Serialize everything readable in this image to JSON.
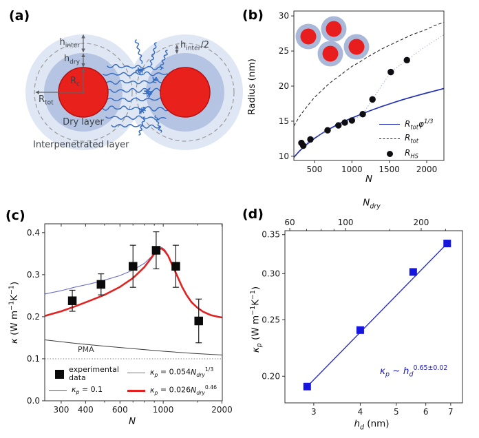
{
  "figure": {
    "background": "#ffffff",
    "panels": {
      "a": {
        "label": "(a)",
        "type": "schematic",
        "annotations": {
          "h_inter": "h_{inter}",
          "h_dry": "h_{dry}",
          "r_core": "R_{c}",
          "r_tot": "R_{tot}",
          "dry_layer": "Dry layer",
          "interpenetrated_layer": "Interpenetrated layer",
          "h_inter_half": "h_{inter}/2"
        },
        "colors": {
          "core": "#e8211d",
          "core_edge": "#b51210",
          "dry_layer": "#b6c4e3",
          "interpenetrated_layer": "#dfe6f4",
          "polymer_chain": "#3a6fc0",
          "dashed_outline": "#9a9a9a",
          "arrow": "#5f6368"
        }
      },
      "b": {
        "label": "(b)",
        "inset": {
          "description": "cluster of four core-shell nanoparticles",
          "shell_color": "#a9b8d8",
          "core_color": "#e81d1d"
        }
      },
      "c": {
        "label": "(c)"
      },
      "d": {
        "label": "(d)"
      }
    }
  },
  "chart_data": [
    {
      "id": "radius_vs_N",
      "panel": "b",
      "type": "line",
      "xlabel": "*N*",
      "ylabel": "Radius (nm)",
      "xscale": "linear",
      "yscale": "linear",
      "xlim": [
        224,
        2230
      ],
      "ylim": [
        9.4,
        30.7
      ],
      "xticks": [
        500,
        1000,
        1500,
        2000
      ],
      "xtick_labels": [
        "500",
        "1000",
        "1500",
        "2000"
      ],
      "yticks": [
        10,
        15,
        20,
        25,
        30
      ],
      "ytick_labels": [
        "10",
        "15",
        "20",
        "25",
        "30"
      ],
      "series": [
        {
          "key": "rtot_phi",
          "name": "R_tot phi^1/3",
          "type": "line",
          "color": "#1f2eb4",
          "width": 1.7,
          "x": [
            224,
            300,
            400,
            500,
            600,
            700,
            800,
            900,
            1000,
            1100,
            1200,
            1300,
            1400,
            1500,
            1600,
            1700,
            1800,
            1900,
            2000,
            2100,
            2230
          ],
          "y": [
            9.85,
            10.76,
            11.73,
            12.55,
            13.27,
            13.9,
            14.47,
            15.0,
            15.45,
            15.89,
            16.32,
            16.71,
            17.1,
            17.45,
            17.8,
            18.13,
            18.44,
            18.73,
            19.02,
            19.29,
            19.66
          ]
        },
        {
          "key": "rtot",
          "name": "R_tot",
          "type": "line",
          "color": "#2b2b2b",
          "width": 1.1,
          "dash": "4.5 3",
          "x": [
            224,
            300,
            400,
            500,
            600,
            700,
            800,
            900,
            1000,
            1100,
            1200,
            1300,
            1400,
            1500,
            1600,
            1700,
            1800,
            1900,
            2000,
            2100,
            2230
          ],
          "y": [
            14.3,
            15.7,
            17.1,
            18.4,
            19.4,
            20.4,
            21.2,
            22.0,
            22.8,
            23.4,
            24.1,
            24.7,
            25.3,
            25.8,
            26.3,
            26.8,
            27.3,
            27.7,
            28.1,
            28.6,
            29.1
          ]
        },
        {
          "key": "rhs_trend",
          "name": "R_HS dotted connector",
          "type": "line",
          "color": "#99a2c8",
          "width": 1,
          "dash": "1.3 2.6",
          "x": [
            325,
            350,
            445,
            675,
            820,
            905,
            1000,
            1145,
            1275,
            1520,
            1735,
            1950,
            2230
          ],
          "y": [
            11.9,
            11.5,
            12.4,
            13.7,
            14.4,
            14.8,
            15.1,
            16.0,
            18.1,
            22.0,
            23.7,
            25.4,
            27.3
          ]
        },
        {
          "key": "rhs",
          "name": "R_HS",
          "type": "scatter",
          "marker": "circle",
          "color": "#0d0d12",
          "size": 9.4,
          "x": [
            325,
            350,
            445,
            675,
            820,
            905,
            1000,
            1145,
            1275,
            1520,
            1735
          ],
          "y": [
            11.9,
            11.5,
            12.4,
            13.7,
            14.4,
            14.8,
            15.1,
            16.0,
            18.1,
            22.0,
            23.7
          ]
        }
      ],
      "legend": [
        {
          "key": "rtot_phi",
          "marker": "line",
          "color": "#1f2eb4",
          "label": "*R_{tot}φ^{1/3}*"
        },
        {
          "key": "rtot",
          "marker": "dashed-line",
          "color": "#2b2b2b",
          "label": "*R_{tot}*"
        },
        {
          "key": "rhs",
          "marker": "circle",
          "color": "#0d0d12",
          "label": "*R_{HS}*"
        }
      ]
    },
    {
      "id": "kappa_vs_N",
      "panel": "c",
      "type": "line",
      "xlabel": "*N*",
      "ylabel": "*κ* (W m^{−1}K^{−1})",
      "xscale": "log",
      "yscale": "linear",
      "xlim": [
        247,
        2008
      ],
      "ylim": [
        0,
        0.421
      ],
      "xticks": [
        300,
        400,
        600,
        1000,
        2000
      ],
      "xtick_labels": [
        "300",
        "400",
        "600",
        "1000",
        "2000"
      ],
      "xticks_minor": [
        500,
        700,
        800,
        900,
        1500
      ],
      "yticks": [
        0.0,
        0.1,
        0.2,
        0.3,
        0.4
      ],
      "ytick_labels": [
        "0.0",
        "0.1",
        "0.2",
        "0.3",
        "0.4"
      ],
      "annotations": {
        "pma_label": "PMA"
      },
      "series": [
        {
          "key": "pma",
          "name": "PMA bulk reference",
          "type": "line",
          "color": "#808080",
          "width": 1,
          "dash": "1.5 2.3",
          "x": [
            247,
            2008
          ],
          "y": [
            0.1,
            0.1
          ]
        },
        {
          "key": "kp_const",
          "name": "kappa_p = 0.1",
          "type": "line",
          "color": "#3c3c3c",
          "width": 1,
          "x": [
            247,
            350,
            500,
            700,
            1000,
            1400,
            2008
          ],
          "y": [
            0.145,
            0.137,
            0.13,
            0.124,
            0.118,
            0.113,
            0.109
          ]
        },
        {
          "key": "blue_fit",
          "name": "kappa_p = 0.054 N_dry^1/3",
          "type": "line",
          "color": "#6a6ec5",
          "width": 1.1,
          "x": [
            247,
            300,
            350,
            420,
            500,
            600,
            700,
            800,
            870,
            920,
            960,
            990,
            1020,
            1060,
            1120,
            1180,
            1250,
            1320,
            1400,
            1500,
            1600,
            1750,
            1900,
            2008
          ],
          "y": [
            0.254,
            0.262,
            0.27,
            0.278,
            0.287,
            0.298,
            0.311,
            0.327,
            0.343,
            0.358,
            0.366,
            0.364,
            0.359,
            0.347,
            0.322,
            0.299,
            0.273,
            0.253,
            0.236,
            0.222,
            0.213,
            0.205,
            0.201,
            0.199
          ]
        },
        {
          "key": "red_fit",
          "name": "kappa_p = 0.026 N_dry^0.46",
          "type": "line",
          "color": "#e32121",
          "width": 2.6,
          "x": [
            247,
            300,
            350,
            420,
            500,
            600,
            700,
            800,
            870,
            920,
            950,
            980,
            1010,
            1060,
            1120,
            1180,
            1250,
            1320,
            1400,
            1500,
            1600,
            1750,
            1900,
            2008
          ],
          "y": [
            0.202,
            0.213,
            0.224,
            0.238,
            0.252,
            0.271,
            0.292,
            0.318,
            0.34,
            0.356,
            0.361,
            0.362,
            0.358,
            0.345,
            0.32,
            0.297,
            0.271,
            0.251,
            0.234,
            0.221,
            0.212,
            0.204,
            0.2,
            0.198
          ]
        },
        {
          "key": "experimental",
          "name": "experimental data",
          "type": "scatter",
          "marker": "square",
          "color": "#0a0a0a",
          "size": 12.5,
          "x": [
            342,
            480,
            700,
            920,
            1160,
            1520
          ],
          "y": [
            0.238,
            0.277,
            0.32,
            0.358,
            0.32,
            0.19
          ],
          "yerr": [
            0.025,
            0.025,
            0.05,
            0.044,
            0.05,
            0.052
          ]
        }
      ],
      "legend": [
        {
          "key": "experimental",
          "marker": "square",
          "color": "#0a0a0a",
          "label": "experimental data"
        },
        {
          "key": "kp_const",
          "marker": "line",
          "color": "#555555",
          "label": "*κ_{p}* = 0.1"
        },
        {
          "key": "blue_fit",
          "marker": "line",
          "color": "#6a6ec5",
          "label": "*κ_{p}* = 0.054*N_{dry}*^{1/3}"
        },
        {
          "key": "red_fit",
          "marker": "thick-line",
          "color": "#e32121",
          "label": "*κ_{p}* = 0.026*N_{dry}*^{0.46}"
        }
      ]
    },
    {
      "id": "kappap_vs_hd",
      "panel": "d",
      "type": "line",
      "xlabel": "*h_{d}* (nm)",
      "ylabel": "*κ_{p}* (W m^{−1}K^{−1})",
      "top_xlabel": "*N_{dry}*",
      "xscale": "log",
      "yscale": "log",
      "xlim": [
        2.51,
        7.53
      ],
      "ylim": [
        0.18,
        0.3555
      ],
      "xticks": [
        3,
        4,
        5,
        6,
        7
      ],
      "xtick_labels": [
        "3",
        "4",
        "5",
        "6",
        "7"
      ],
      "yticks": [
        0.2,
        0.25,
        0.3,
        0.35
      ],
      "ytick_labels": [
        "0.20",
        "0.25",
        "0.30",
        "0.35"
      ],
      "top_xlim": [
        57.4,
        292
      ],
      "top_xticks": [
        60,
        100,
        200
      ],
      "top_xtick_labels": [
        "60",
        "100",
        "200"
      ],
      "top_xticks_minor": [
        70,
        80,
        90,
        150,
        250
      ],
      "annotations": {
        "fit_label": "*κ_{p}* ~ *h_{d}*^{0.65±0.02}"
      },
      "series": [
        {
          "key": "fit_line",
          "name": "power-law fit",
          "type": "line",
          "color": "#2a2ec2",
          "width": 1.4,
          "x": [
            2.88,
            6.85
          ],
          "y": [
            0.192,
            0.338
          ]
        },
        {
          "key": "kp_points",
          "name": "kappa_p",
          "type": "scatter",
          "marker": "square",
          "color": "#1515dd",
          "size": 11,
          "x": [
            2.88,
            4.0,
            5.55,
            6.85
          ],
          "y": [
            0.192,
            0.24,
            0.302,
            0.338
          ]
        }
      ]
    }
  ]
}
